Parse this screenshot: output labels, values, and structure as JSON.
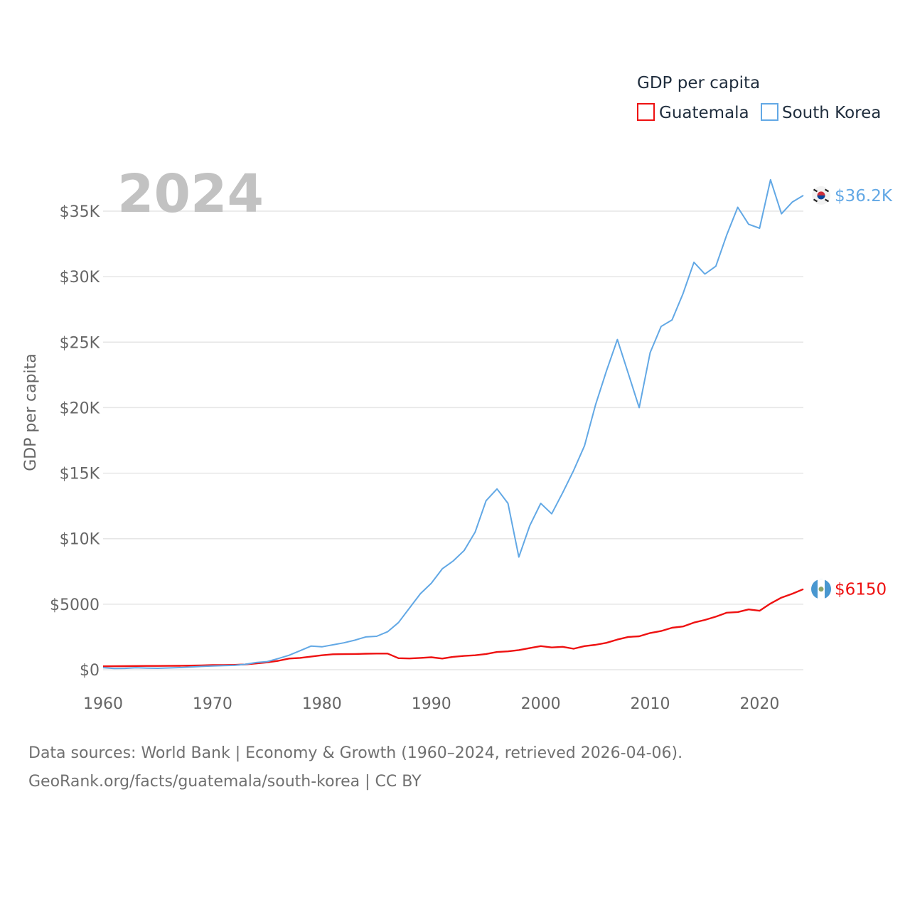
{
  "chart_data": {
    "type": "line",
    "title": "",
    "year_label": "2024",
    "ylabel": "GDP per capita",
    "xlabel": "",
    "xlim": [
      1960,
      2024
    ],
    "ylim": [
      0,
      38000
    ],
    "x_ticks": [
      1960,
      1970,
      1980,
      1990,
      2000,
      2010,
      2020
    ],
    "x_tick_labels": [
      "1960",
      "1970",
      "1980",
      "1990",
      "2000",
      "2010",
      "2020"
    ],
    "y_ticks": [
      0,
      5000,
      10000,
      15000,
      20000,
      25000,
      30000,
      35000
    ],
    "y_tick_labels": [
      "$0",
      "$5000",
      "$10K",
      "$15K",
      "$20K",
      "$25K",
      "$30K",
      "$35K"
    ],
    "legend_title": "GDP per capita",
    "legend_position": "top-right",
    "grid": true,
    "x": [
      1960,
      1961,
      1962,
      1963,
      1964,
      1965,
      1966,
      1967,
      1968,
      1969,
      1970,
      1971,
      1972,
      1973,
      1974,
      1975,
      1976,
      1977,
      1978,
      1979,
      1980,
      1981,
      1982,
      1983,
      1984,
      1985,
      1986,
      1987,
      1988,
      1989,
      1990,
      1991,
      1992,
      1993,
      1994,
      1995,
      1996,
      1997,
      1998,
      1999,
      2000,
      2001,
      2002,
      2003,
      2004,
      2005,
      2006,
      2007,
      2008,
      2009,
      2010,
      2011,
      2012,
      2013,
      2014,
      2015,
      2016,
      2017,
      2018,
      2019,
      2020,
      2021,
      2022,
      2023,
      2024
    ],
    "series": [
      {
        "name": "Guatemala",
        "color": "#ee1111",
        "end_label": "$6150",
        "flag_icon": "guatemala-flag-icon",
        "values": [
          260,
          265,
          270,
          280,
          285,
          290,
          295,
          300,
          315,
          330,
          350,
          360,
          370,
          400,
          480,
          560,
          680,
          850,
          900,
          1000,
          1100,
          1180,
          1190,
          1200,
          1220,
          1230,
          1230,
          880,
          860,
          900,
          950,
          850,
          980,
          1050,
          1100,
          1200,
          1350,
          1400,
          1500,
          1650,
          1800,
          1700,
          1750,
          1600,
          1800,
          1900,
          2050,
          2300,
          2500,
          2550,
          2800,
          2950,
          3200,
          3300,
          3600,
          3800,
          4050,
          4350,
          4400,
          4600,
          4500,
          5050,
          5500,
          5800,
          6150
        ]
      },
      {
        "name": "South Korea",
        "color": "#62a8e5",
        "end_label": "$36.2K",
        "flag_icon": "south-korea-flag-icon",
        "values": [
          160,
          95,
          105,
          145,
          125,
          110,
          135,
          165,
          200,
          250,
          280,
          310,
          330,
          410,
          550,
          620,
          850,
          1100,
          1450,
          1800,
          1750,
          1900,
          2050,
          2250,
          2500,
          2550,
          2900,
          3600,
          4700,
          5800,
          6600,
          7700,
          8300,
          9100,
          10500,
          12900,
          13800,
          12700,
          8600,
          11000,
          12700,
          11900,
          13500,
          15200,
          17100,
          20200,
          22800,
          25200,
          22600,
          20000,
          24200,
          26200,
          26700,
          28700,
          31100,
          30200,
          30800,
          33200,
          35300,
          34000,
          33700,
          37400,
          34800,
          35700,
          36200
        ]
      }
    ]
  },
  "footer": {
    "line1": "Data sources: World Bank | Economy & Growth (1960–2024, retrieved 2026-04-06).",
    "line2": "GeoRank.org/facts/guatemala/south-korea | CC BY"
  }
}
